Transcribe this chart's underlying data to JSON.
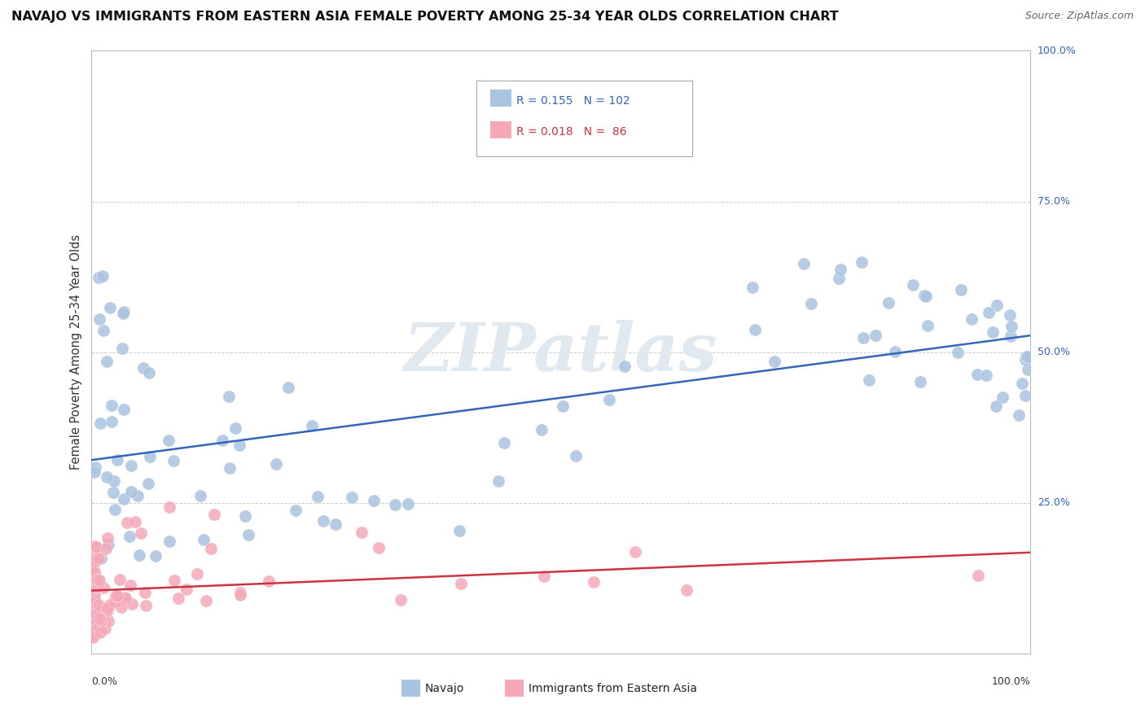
{
  "title": "NAVAJO VS IMMIGRANTS FROM EASTERN ASIA FEMALE POVERTY AMONG 25-34 YEAR OLDS CORRELATION CHART",
  "source": "Source: ZipAtlas.com",
  "ylabel": "Female Poverty Among 25-34 Year Olds",
  "legend_navajo": "Navajo",
  "legend_immigrants": "Immigrants from Eastern Asia",
  "r_navajo": 0.155,
  "n_navajo": 102,
  "r_immigrants": 0.018,
  "n_immigrants": 86,
  "navajo_color": "#A8C4E0",
  "immigrants_color": "#F4A8B8",
  "trend_navajo_color": "#3366BB",
  "trend_immigrants_color": "#CC3344",
  "watermark_color": "#E0E8F0",
  "background_color": "#FFFFFF",
  "grid_color": "#CCCCCC",
  "ytick_vals": [
    0.0,
    0.25,
    0.5,
    0.75,
    1.0
  ],
  "ytick_labels": [
    "",
    "25.0%",
    "50.0%",
    "75.0%",
    "100.0%"
  ]
}
